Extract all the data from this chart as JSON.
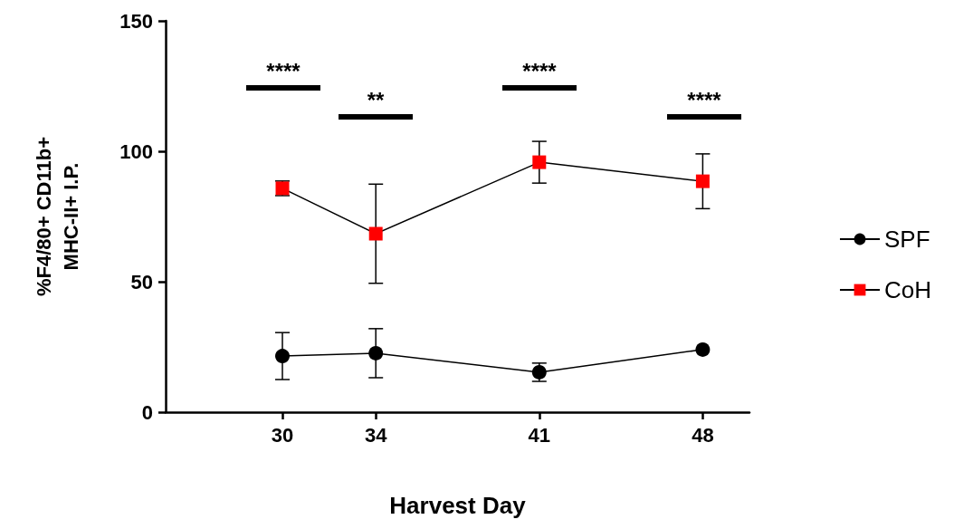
{
  "chart_data": {
    "type": "line",
    "xlabel": "Harvest Day",
    "ylabel": "%F4/80+ CD11b+\nMHC-II+ I.P.",
    "x": [
      30,
      34,
      41,
      48
    ],
    "xlim": [
      25,
      50
    ],
    "xticks": [
      30,
      34,
      41,
      48
    ],
    "ylim": [
      0,
      150
    ],
    "yticks": [
      0,
      50,
      100,
      150
    ],
    "grid": false,
    "legend": "right",
    "series": [
      {
        "name": "SPF",
        "color": "#000000",
        "marker": "circle",
        "values": [
          21.5,
          22.6,
          15.3,
          24
        ],
        "errors": [
          9,
          9.4,
          3.5,
          null
        ]
      },
      {
        "name": "CoH",
        "color": "#ff0000",
        "marker": "square",
        "values": [
          85.8,
          68.4,
          95.8,
          88.5
        ],
        "errors": [
          2.8,
          19,
          8,
          10.5
        ]
      }
    ],
    "annotations": [
      "****",
      "**",
      "****",
      "****"
    ]
  }
}
